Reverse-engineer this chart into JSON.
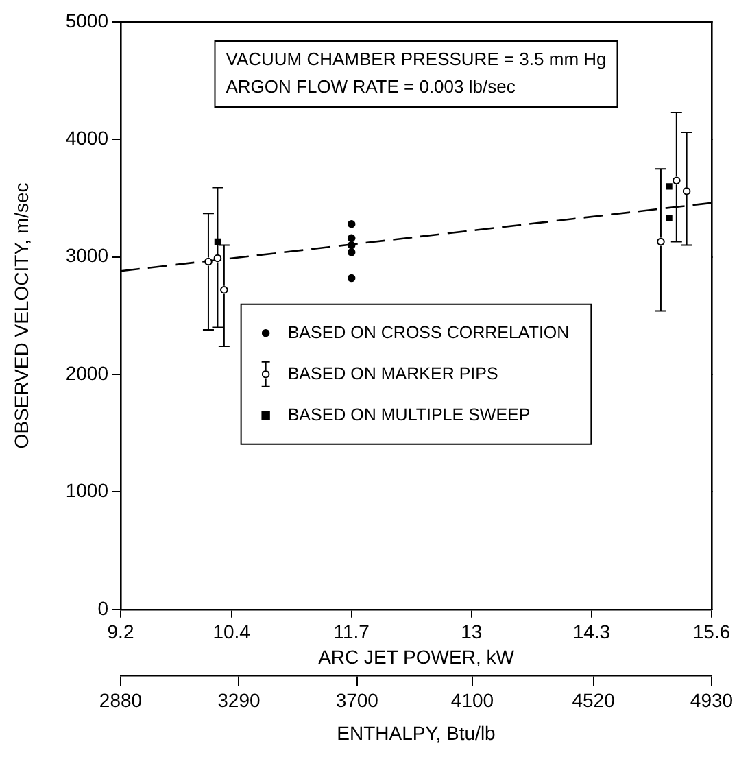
{
  "chart_data": {
    "type": "scatter",
    "xlabel": "ARC JET POWER, kW",
    "ylabel": "OBSERVED VELOCITY, m/sec",
    "x2label": "ENTHALPY, Btu/lb",
    "xlim": [
      9.2,
      15.6
    ],
    "xticks": [
      9.2,
      10.4,
      11.7,
      13,
      14.3,
      15.6
    ],
    "x2lim": [
      2880,
      4930
    ],
    "x2ticks": [
      2880,
      3290,
      3700,
      4100,
      4520,
      4930
    ],
    "ylim": [
      0,
      5000
    ],
    "yticks": [
      0,
      1000,
      2000,
      3000,
      4000,
      5000
    ],
    "grid": false,
    "legend": "center",
    "annotations": [
      "VACUUM CHAMBER PRESSURE = 3.5 mm Hg",
      "ARGON FLOW RATE = 0.003 lb/sec"
    ],
    "series": [
      {
        "name": "BASED ON CROSS CORRELATION",
        "color": "#000000",
        "marker": "circle",
        "x": [
          11.7,
          11.7,
          11.7,
          11.7,
          11.7
        ],
        "values": [
          3280,
          3160,
          3100,
          3040,
          2820
        ]
      },
      {
        "name": "BASED ON MARKER PIPS",
        "color": "#000000",
        "marker": "circle",
        "x": [
          10.15,
          10.25,
          10.32,
          15.05,
          15.22,
          15.33
        ],
        "values": [
          2960,
          2990,
          2720,
          3130,
          3650,
          3560
        ],
        "errors": [
          [
            2380,
            3370
          ],
          [
            2400,
            3590
          ],
          [
            2240,
            3100
          ],
          [
            2540,
            3750
          ],
          [
            3130,
            4230
          ],
          [
            3100,
            4060
          ]
        ]
      },
      {
        "name": "BASED ON MULTIPLE SWEEP",
        "color": "#000000",
        "marker": "square",
        "x": [
          10.25,
          15.14,
          15.14
        ],
        "values": [
          3130,
          3600,
          3330
        ]
      },
      {
        "type": "line",
        "color": "#000000",
        "marker": "none",
        "line_style": "dashed",
        "x": [
          9.2,
          15.6
        ],
        "values": [
          2880,
          3460
        ]
      }
    ]
  }
}
